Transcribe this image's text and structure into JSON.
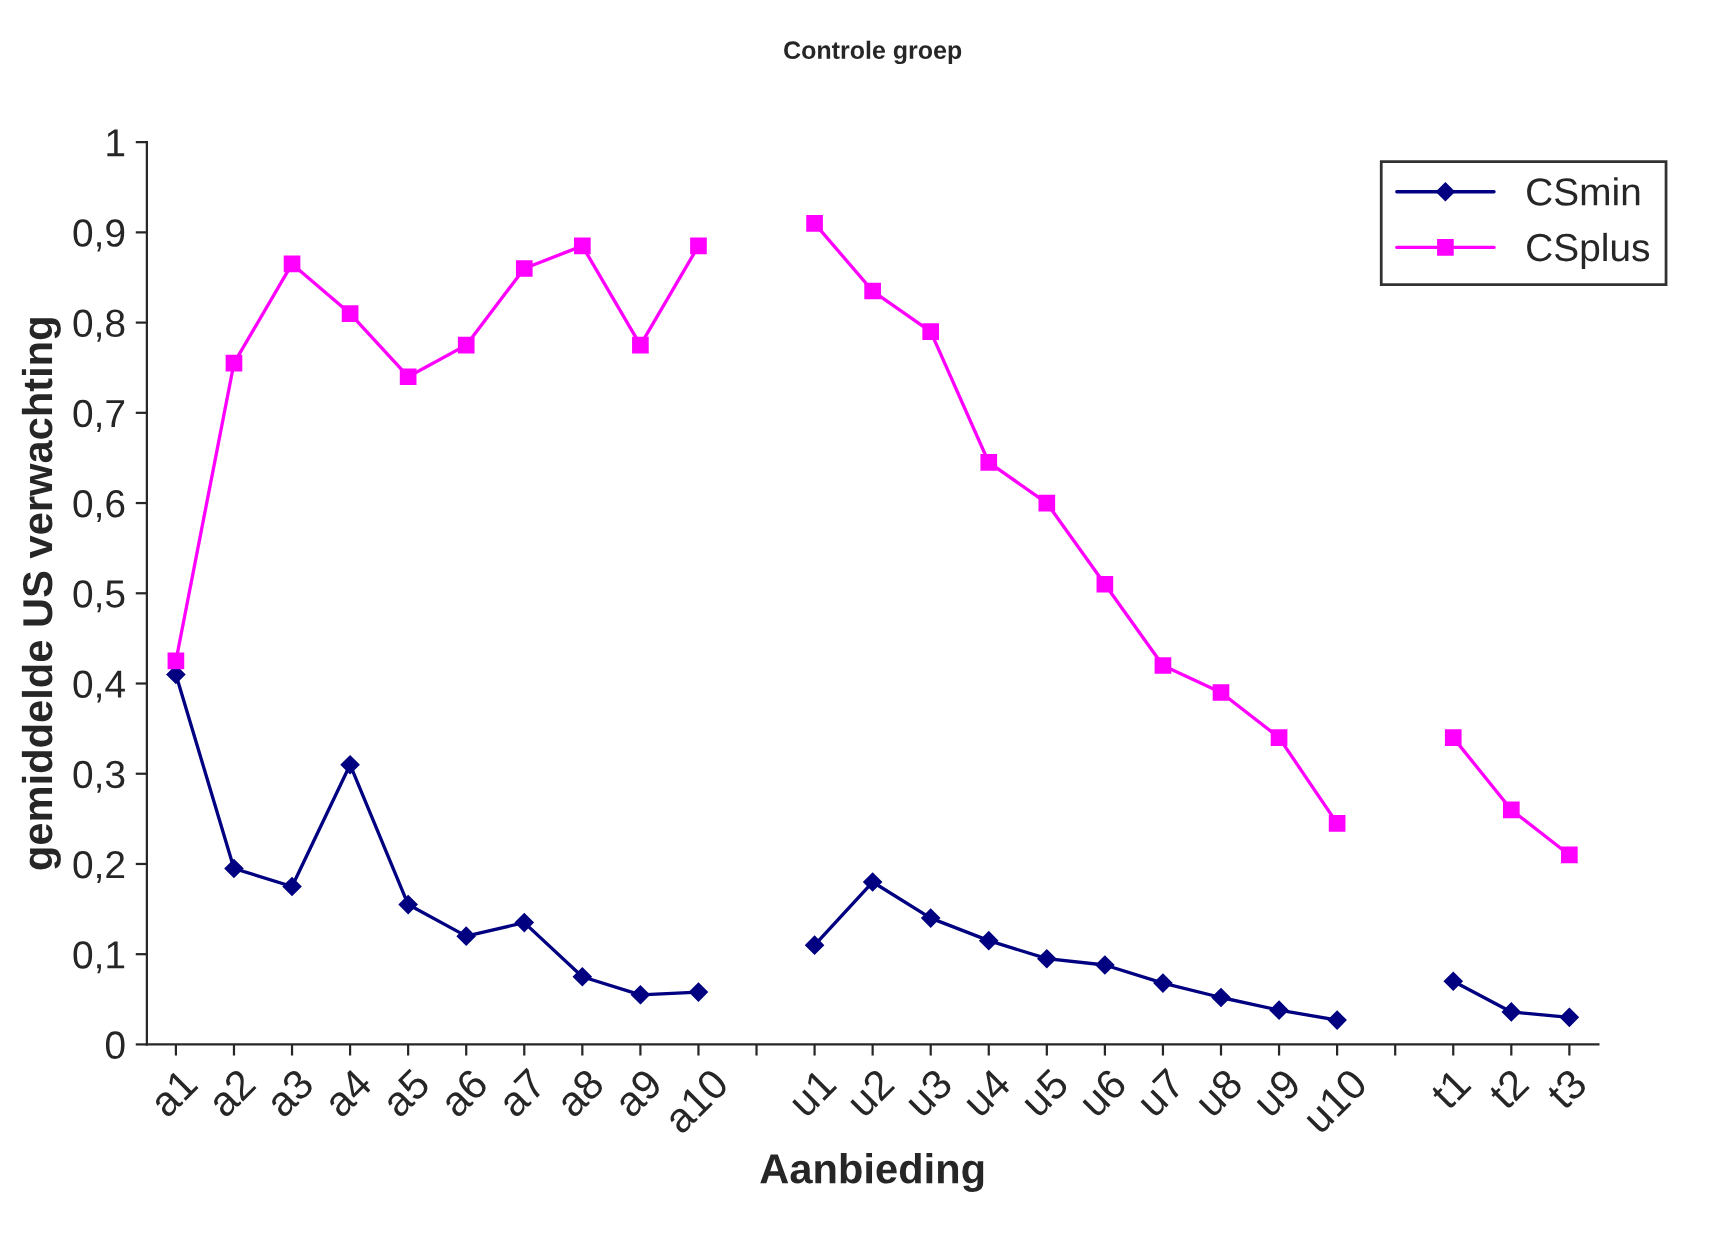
{
  "chart_data": {
    "type": "line",
    "title": "Controle groep",
    "xlabel": "Aanbieding",
    "ylabel": "gemiddelde US verwachting",
    "categories": [
      "a1",
      "a2",
      "a3",
      "a4",
      "a5",
      "a6",
      "a7",
      "a8",
      "a9",
      "a10",
      null,
      "u1",
      "u2",
      "u3",
      "u4",
      "u5",
      "u6",
      "u7",
      "u8",
      "u9",
      "u10",
      null,
      "t1",
      "t2",
      "t3"
    ],
    "series": [
      {
        "name": "CSmin",
        "color": "#000080",
        "marker": "diamond",
        "values": [
          0.41,
          0.195,
          0.175,
          0.31,
          0.155,
          0.12,
          0.135,
          0.075,
          0.055,
          0.058,
          null,
          0.11,
          0.18,
          0.14,
          0.115,
          0.095,
          0.088,
          0.068,
          0.052,
          0.038,
          0.027,
          null,
          0.07,
          0.036,
          0.03
        ]
      },
      {
        "name": "CSplus",
        "color": "#ff00ff",
        "marker": "square",
        "values": [
          0.425,
          0.755,
          0.865,
          0.81,
          0.74,
          0.775,
          0.86,
          0.885,
          0.775,
          0.885,
          null,
          0.91,
          0.835,
          0.79,
          0.645,
          0.6,
          0.51,
          0.42,
          0.39,
          0.34,
          0.245,
          null,
          0.34,
          0.26,
          0.21
        ]
      }
    ],
    "ylim": [
      0,
      1
    ],
    "yticks": [
      {
        "value": 0,
        "label": "0"
      },
      {
        "value": 0.1,
        "label": "0,1"
      },
      {
        "value": 0.2,
        "label": "0,2"
      },
      {
        "value": 0.3,
        "label": "0,3"
      },
      {
        "value": 0.4,
        "label": "0,4"
      },
      {
        "value": 0.5,
        "label": "0,5"
      },
      {
        "value": 0.6,
        "label": "0,6"
      },
      {
        "value": 0.7,
        "label": "0,7"
      },
      {
        "value": 0.8,
        "label": "0,8"
      },
      {
        "value": 0.9,
        "label": "0,9"
      },
      {
        "value": 1,
        "label": "1"
      }
    ],
    "grid": false,
    "legend": "top right",
    "line_style": "solid"
  }
}
